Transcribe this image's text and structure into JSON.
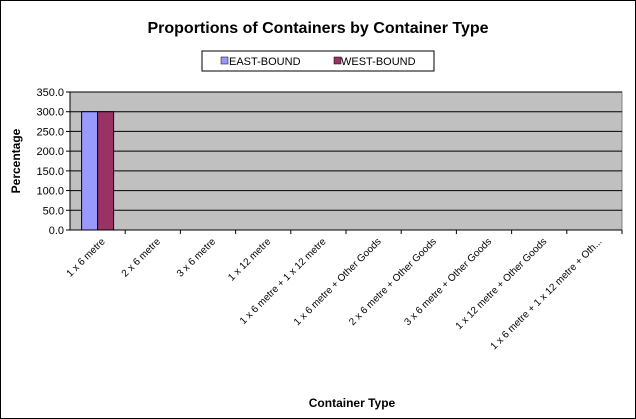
{
  "chart_data": {
    "type": "bar",
    "title": "Proportions of Containers by Container Type",
    "xlabel": "Container Type",
    "ylabel": "Percentage",
    "ylim": [
      0,
      350
    ],
    "yticks": [
      "0.0",
      "50.0",
      "100.0",
      "150.0",
      "200.0",
      "250.0",
      "300.0",
      "350.0"
    ],
    "grid": true,
    "legend_position": "top-center",
    "background_color": "#c0c0c0",
    "categories": [
      "1 x 6 metre",
      "2 x 6 metre",
      "3 x 6 metre",
      "1 x 12 metre",
      "1 x 6 metre + 1 x 12 metre",
      "1 x 6 metre + Other Goods",
      "2 x 6 metre + Other Goods",
      "3 x 6 metre + Other Goods",
      "1 x 12 metre + Other Goods",
      "1 x 6 metre + 1 x 12 metre + Oth..."
    ],
    "series": [
      {
        "name": "EAST-BOUND",
        "color": "#9999ff",
        "values": [
          300,
          0,
          0,
          0,
          0,
          0,
          0,
          0,
          0,
          0
        ]
      },
      {
        "name": "WEST-BOUND",
        "color": "#993366",
        "values": [
          300,
          0,
          0,
          0,
          0,
          0,
          0,
          0,
          0,
          0
        ]
      }
    ]
  }
}
